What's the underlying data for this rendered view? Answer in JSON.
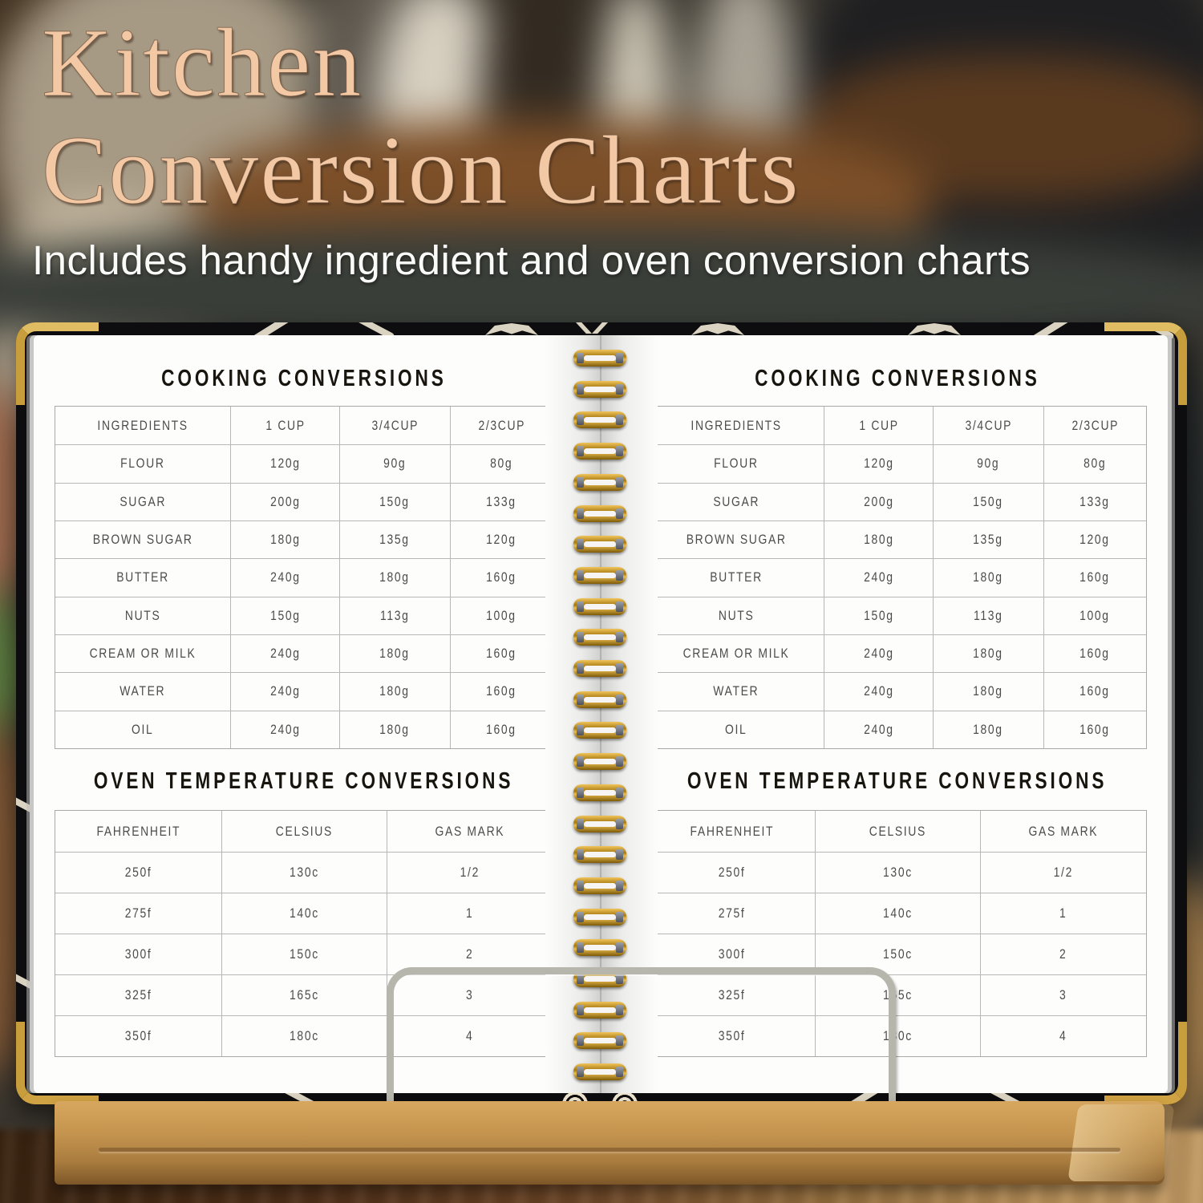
{
  "photo_header": {
    "title_line1": "Kitchen",
    "title_line2": "Conversion Charts",
    "subtitle": "Includes handy ingredient and oven conversion charts"
  },
  "page": {
    "cooking": {
      "title": "COOKING CONVERSIONS",
      "columns": [
        "INGREDIENTS",
        "1 CUP",
        "3/4CUP",
        "2/3CUP"
      ],
      "rows": [
        [
          "FLOUR",
          "120g",
          "90g",
          "80g"
        ],
        [
          "SUGAR",
          "200g",
          "150g",
          "133g"
        ],
        [
          "BROWN SUGAR",
          "180g",
          "135g",
          "120g"
        ],
        [
          "BUTTER",
          "240g",
          "180g",
          "160g"
        ],
        [
          "NUTS",
          "150g",
          "113g",
          "100g"
        ],
        [
          "CREAM OR MILK",
          "240g",
          "180g",
          "160g"
        ],
        [
          "WATER",
          "240g",
          "180g",
          "160g"
        ],
        [
          "OIL",
          "240g",
          "180g",
          "160g"
        ]
      ]
    },
    "oven": {
      "title": "OVEN TEMPERATURE CONVERSIONS",
      "columns": [
        "FAHRENHEIT",
        "CELSIUS",
        "GAS MARK"
      ],
      "rows": [
        [
          "250f",
          "130c",
          "1/2"
        ],
        [
          "275f",
          "140c",
          "1"
        ],
        [
          "300f",
          "150c",
          "2"
        ],
        [
          "325f",
          "165c",
          "3"
        ],
        [
          "350f",
          "180c",
          "4"
        ]
      ]
    }
  },
  "decor": {
    "spiral_loop_count": 24,
    "colors": {
      "title_peach": "#f3c8a4",
      "subtitle_white": "#fafaf8",
      "cover_black": "#0d0d0f",
      "cover_pattern_cream": "#ece3cf",
      "spiral_gold": "#c8920f",
      "gold_corner": "#d7af4f",
      "page_white": "#fdfdfc",
      "table_border_gray": "#b7b7b5",
      "table_text_gray": "#4c4c4c",
      "bamboo_stand": "#bd8f51",
      "wire_silver": "#b6b6ac"
    }
  }
}
